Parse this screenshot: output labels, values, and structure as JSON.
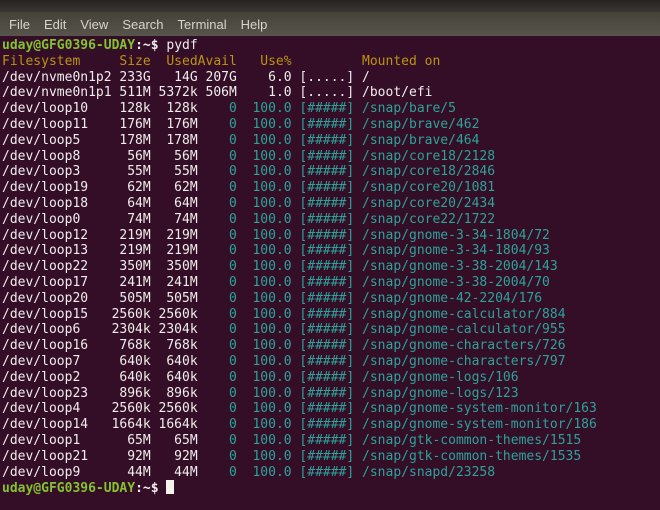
{
  "menu_bar": {
    "items": [
      "File",
      "Edit",
      "View",
      "Search",
      "Terminal",
      "Help"
    ]
  },
  "terminal": {
    "prompt": {
      "user_host": "uday@GFG0396-UDAY",
      "suffix": ":~$"
    },
    "command": "pydf",
    "table": {
      "header": {
        "filesystem": "Filesystem",
        "size": "Size",
        "used": "Used",
        "avail": "Avail",
        "use_pct": "Use%",
        "mounted_on": "Mounted on"
      },
      "rows": [
        {
          "filesystem": "/dev/nvme0n1p2",
          "size": "233G",
          "used": "14G",
          "avail": "207G",
          "use_pct": "6.0",
          "bar": "[.....]",
          "mount": "/",
          "kind": "disk"
        },
        {
          "filesystem": "/dev/nvme0n1p1",
          "size": "511M",
          "used": "5372k",
          "avail": "506M",
          "use_pct": "1.0",
          "bar": "[.....]",
          "mount": "/boot/efi",
          "kind": "disk"
        },
        {
          "filesystem": "/dev/loop10",
          "size": "128k",
          "used": "128k",
          "avail": "0",
          "use_pct": "100.0",
          "bar": "[#####]",
          "mount": "/snap/bare/5",
          "kind": "snap"
        },
        {
          "filesystem": "/dev/loop11",
          "size": "176M",
          "used": "176M",
          "avail": "0",
          "use_pct": "100.0",
          "bar": "[#####]",
          "mount": "/snap/brave/462",
          "kind": "snap"
        },
        {
          "filesystem": "/dev/loop5",
          "size": "178M",
          "used": "178M",
          "avail": "0",
          "use_pct": "100.0",
          "bar": "[#####]",
          "mount": "/snap/brave/464",
          "kind": "snap"
        },
        {
          "filesystem": "/dev/loop8",
          "size": "56M",
          "used": "56M",
          "avail": "0",
          "use_pct": "100.0",
          "bar": "[#####]",
          "mount": "/snap/core18/2128",
          "kind": "snap"
        },
        {
          "filesystem": "/dev/loop3",
          "size": "55M",
          "used": "55M",
          "avail": "0",
          "use_pct": "100.0",
          "bar": "[#####]",
          "mount": "/snap/core18/2846",
          "kind": "snap"
        },
        {
          "filesystem": "/dev/loop19",
          "size": "62M",
          "used": "62M",
          "avail": "0",
          "use_pct": "100.0",
          "bar": "[#####]",
          "mount": "/snap/core20/1081",
          "kind": "snap"
        },
        {
          "filesystem": "/dev/loop18",
          "size": "64M",
          "used": "64M",
          "avail": "0",
          "use_pct": "100.0",
          "bar": "[#####]",
          "mount": "/snap/core20/2434",
          "kind": "snap"
        },
        {
          "filesystem": "/dev/loop0",
          "size": "74M",
          "used": "74M",
          "avail": "0",
          "use_pct": "100.0",
          "bar": "[#####]",
          "mount": "/snap/core22/1722",
          "kind": "snap"
        },
        {
          "filesystem": "/dev/loop12",
          "size": "219M",
          "used": "219M",
          "avail": "0",
          "use_pct": "100.0",
          "bar": "[#####]",
          "mount": "/snap/gnome-3-34-1804/72",
          "kind": "snap"
        },
        {
          "filesystem": "/dev/loop13",
          "size": "219M",
          "used": "219M",
          "avail": "0",
          "use_pct": "100.0",
          "bar": "[#####]",
          "mount": "/snap/gnome-3-34-1804/93",
          "kind": "snap"
        },
        {
          "filesystem": "/dev/loop22",
          "size": "350M",
          "used": "350M",
          "avail": "0",
          "use_pct": "100.0",
          "bar": "[#####]",
          "mount": "/snap/gnome-3-38-2004/143",
          "kind": "snap"
        },
        {
          "filesystem": "/dev/loop17",
          "size": "241M",
          "used": "241M",
          "avail": "0",
          "use_pct": "100.0",
          "bar": "[#####]",
          "mount": "/snap/gnome-3-38-2004/70",
          "kind": "snap"
        },
        {
          "filesystem": "/dev/loop20",
          "size": "505M",
          "used": "505M",
          "avail": "0",
          "use_pct": "100.0",
          "bar": "[#####]",
          "mount": "/snap/gnome-42-2204/176",
          "kind": "snap"
        },
        {
          "filesystem": "/dev/loop15",
          "size": "2560k",
          "used": "2560k",
          "avail": "0",
          "use_pct": "100.0",
          "bar": "[#####]",
          "mount": "/snap/gnome-calculator/884",
          "kind": "snap"
        },
        {
          "filesystem": "/dev/loop6",
          "size": "2304k",
          "used": "2304k",
          "avail": "0",
          "use_pct": "100.0",
          "bar": "[#####]",
          "mount": "/snap/gnome-calculator/955",
          "kind": "snap"
        },
        {
          "filesystem": "/dev/loop16",
          "size": "768k",
          "used": "768k",
          "avail": "0",
          "use_pct": "100.0",
          "bar": "[#####]",
          "mount": "/snap/gnome-characters/726",
          "kind": "snap"
        },
        {
          "filesystem": "/dev/loop7",
          "size": "640k",
          "used": "640k",
          "avail": "0",
          "use_pct": "100.0",
          "bar": "[#####]",
          "mount": "/snap/gnome-characters/797",
          "kind": "snap"
        },
        {
          "filesystem": "/dev/loop2",
          "size": "640k",
          "used": "640k",
          "avail": "0",
          "use_pct": "100.0",
          "bar": "[#####]",
          "mount": "/snap/gnome-logs/106",
          "kind": "snap"
        },
        {
          "filesystem": "/dev/loop23",
          "size": "896k",
          "used": "896k",
          "avail": "0",
          "use_pct": "100.0",
          "bar": "[#####]",
          "mount": "/snap/gnome-logs/123",
          "kind": "snap"
        },
        {
          "filesystem": "/dev/loop4",
          "size": "2560k",
          "used": "2560k",
          "avail": "0",
          "use_pct": "100.0",
          "bar": "[#####]",
          "mount": "/snap/gnome-system-monitor/163",
          "kind": "snap"
        },
        {
          "filesystem": "/dev/loop14",
          "size": "1664k",
          "used": "1664k",
          "avail": "0",
          "use_pct": "100.0",
          "bar": "[#####]",
          "mount": "/snap/gnome-system-monitor/186",
          "kind": "snap"
        },
        {
          "filesystem": "/dev/loop1",
          "size": "65M",
          "used": "65M",
          "avail": "0",
          "use_pct": "100.0",
          "bar": "[#####]",
          "mount": "/snap/gtk-common-themes/1515",
          "kind": "snap"
        },
        {
          "filesystem": "/dev/loop21",
          "size": "92M",
          "used": "92M",
          "avail": "0",
          "use_pct": "100.0",
          "bar": "[#####]",
          "mount": "/snap/gtk-common-themes/1535",
          "kind": "snap"
        },
        {
          "filesystem": "/dev/loop9",
          "size": "44M",
          "used": "44M",
          "avail": "0",
          "use_pct": "100.0",
          "bar": "[#####]",
          "mount": "/snap/snapd/23258",
          "kind": "snap"
        }
      ]
    },
    "colors": {
      "background": "#340d27",
      "foreground": "#f0eeec",
      "prompt_green": "#84c32f",
      "header_yellow": "#bb9410",
      "snap_teal": "#2da39a",
      "menubar_text": "#d8d4cc",
      "cursor": "#f4f1ee"
    }
  }
}
